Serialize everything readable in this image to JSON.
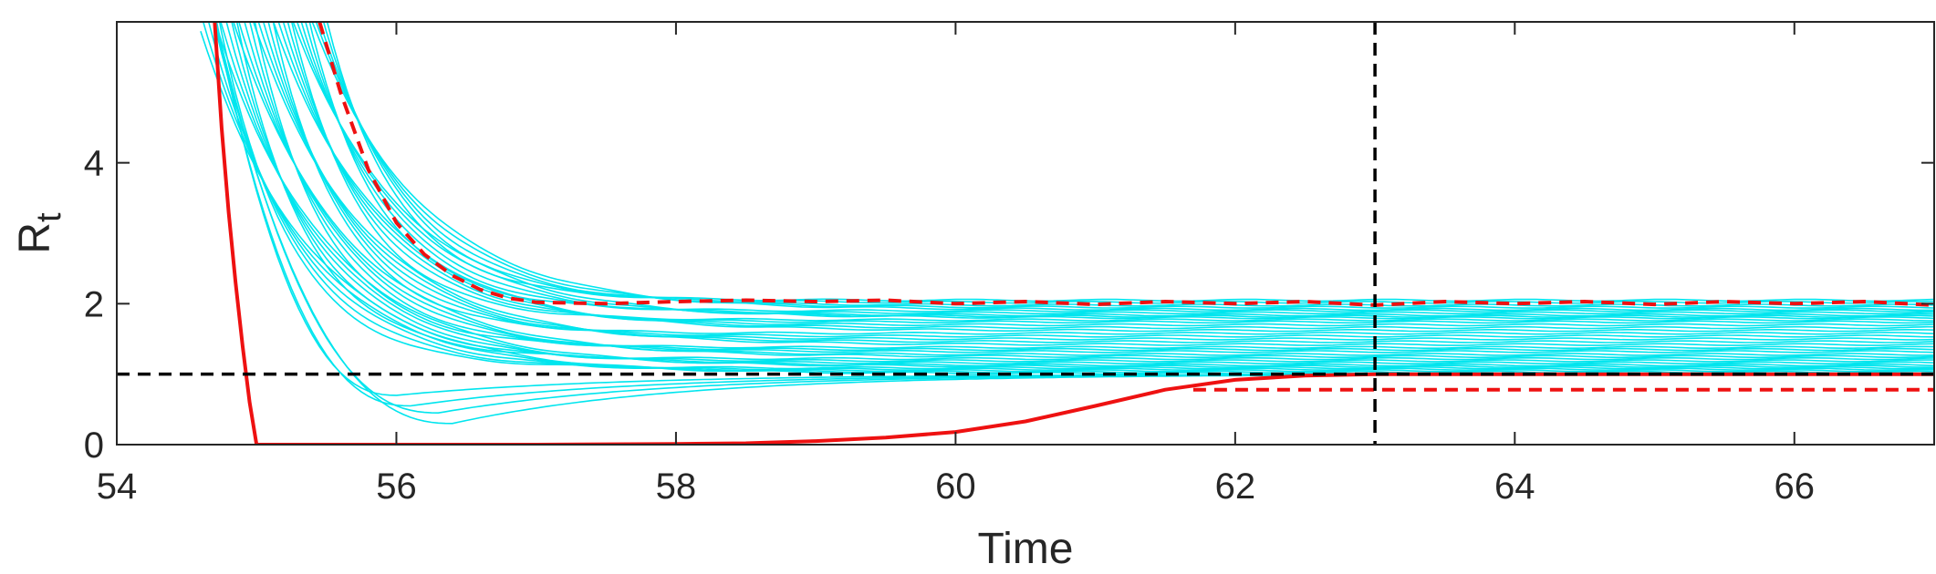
{
  "chart_data": {
    "type": "line",
    "title": "",
    "xlabel": "Time",
    "ylabel_main": "R",
    "ylabel_sub": "t",
    "xlim": [
      54,
      67
    ],
    "ylim": [
      0,
      6
    ],
    "x_ticks": [
      54,
      56,
      58,
      60,
      62,
      64,
      66
    ],
    "y_ticks": [
      0,
      2,
      4
    ],
    "grid": false,
    "legend": "none",
    "colors": {
      "ensemble": "#00e5ee",
      "estimate": "#ee1111",
      "reference": "#000000",
      "axis": "#262626"
    },
    "reference_lines": [
      {
        "orientation": "horizontal",
        "y": 1,
        "style": "dashed"
      },
      {
        "orientation": "vertical",
        "x": 63,
        "style": "dashed"
      }
    ],
    "series": [
      {
        "role": "ensemble",
        "style": "thin-cyan",
        "plateau_levels": [
          2.05,
          2.02,
          1.98,
          1.95,
          1.92,
          1.9,
          1.87,
          1.84,
          1.82,
          1.8,
          1.77,
          1.74,
          1.7,
          1.66,
          1.62,
          1.58,
          1.54,
          1.5,
          1.46,
          1.42,
          1.38,
          1.35,
          1.32,
          1.28,
          1.25,
          1.22,
          1.19,
          1.16,
          1.13,
          1.11,
          1.09,
          1.07,
          1.05,
          1.03,
          1.01
        ],
        "low_tracks": [
          {
            "min": 0.7,
            "xmin": 56.0,
            "end": 1.0
          },
          {
            "min": 0.55,
            "xmin": 56.1,
            "end": 1.0
          },
          {
            "min": 0.45,
            "xmin": 56.3,
            "end": 1.0
          },
          {
            "min": 0.3,
            "xmin": 56.4,
            "end": 1.0
          }
        ]
      },
      {
        "role": "estimate-upper",
        "style": "red-dashed",
        "x": [
          55.45,
          55.6,
          55.8,
          56.0,
          56.2,
          56.4,
          56.6,
          56.8,
          57.0,
          57.5,
          58.0,
          58.5,
          59.0,
          59.5,
          60.0,
          60.5,
          61.0,
          61.5,
          62.0,
          62.5,
          63.0,
          63.5,
          64.0,
          64.5,
          65.0,
          65.5,
          66.0,
          66.5,
          67.0
        ],
        "y": [
          6.0,
          5.0,
          3.9,
          3.15,
          2.7,
          2.4,
          2.2,
          2.08,
          2.02,
          2.0,
          2.03,
          2.05,
          2.03,
          2.05,
          2.0,
          2.03,
          1.99,
          2.03,
          2.0,
          2.03,
          1.98,
          2.03,
          2.0,
          2.03,
          1.99,
          2.03,
          2.0,
          2.03,
          1.98
        ]
      },
      {
        "role": "estimate-lower",
        "style": "red-dashed",
        "x": [
          61.7,
          62.5,
          63.0,
          64.0,
          65.0,
          66.0,
          67.0
        ],
        "y": [
          0.78,
          0.78,
          0.78,
          0.78,
          0.78,
          0.78,
          0.78
        ]
      },
      {
        "role": "estimate-mean",
        "style": "red-solid",
        "x": [
          54.7,
          54.75,
          54.8,
          54.85,
          54.9,
          54.95,
          55.0,
          56.0,
          57.0,
          58.0,
          58.5,
          59.0,
          59.5,
          60.0,
          60.5,
          61.0,
          61.5,
          62.0,
          62.5,
          63.0,
          64.0,
          65.0,
          66.0,
          67.0
        ],
        "y": [
          6.0,
          4.5,
          3.3,
          2.3,
          1.4,
          0.6,
          0.0,
          0.0,
          0.0,
          0.01,
          0.02,
          0.05,
          0.1,
          0.18,
          0.33,
          0.55,
          0.78,
          0.92,
          0.98,
          1.0,
          1.0,
          1.0,
          1.0,
          1.0
        ]
      }
    ]
  }
}
